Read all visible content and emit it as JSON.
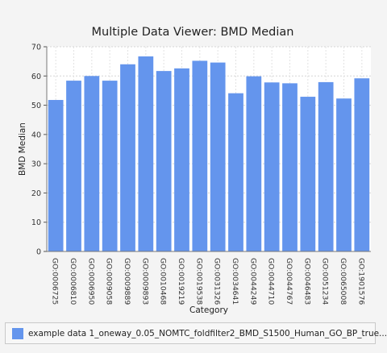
{
  "chart_data": {
    "type": "bar",
    "title": "Multiple Data Viewer: BMD Median",
    "xlabel": "Category",
    "ylabel": "BMD Median",
    "ylim": [
      0,
      70
    ],
    "yticks": [
      0,
      10,
      20,
      30,
      40,
      50,
      60,
      70
    ],
    "grid": true,
    "legend_placement": "bottom",
    "categories": [
      "GO:0006725",
      "GO:0006810",
      "GO:0006950",
      "GO:0009058",
      "GO:0009889",
      "GO:0009893",
      "GO:0010468",
      "GO:0019219",
      "GO:0019538",
      "GO:0031326",
      "GO:0034641",
      "GO:0044249",
      "GO:0044710",
      "GO:0044767",
      "GO:0046483",
      "GO:0051234",
      "GO:0065008",
      "GO:1901576"
    ],
    "series": [
      {
        "name": "example data 1_oneway_0.05_NOMTC_foldfilter2_BMD_S1500_Human_GO_BP_true...",
        "color": "#6495ed",
        "values": [
          51.8,
          58.4,
          60.0,
          58.4,
          64.0,
          66.7,
          61.7,
          62.6,
          65.2,
          64.6,
          54.1,
          59.9,
          57.8,
          57.5,
          52.9,
          57.9,
          52.3,
          59.2
        ]
      }
    ]
  }
}
